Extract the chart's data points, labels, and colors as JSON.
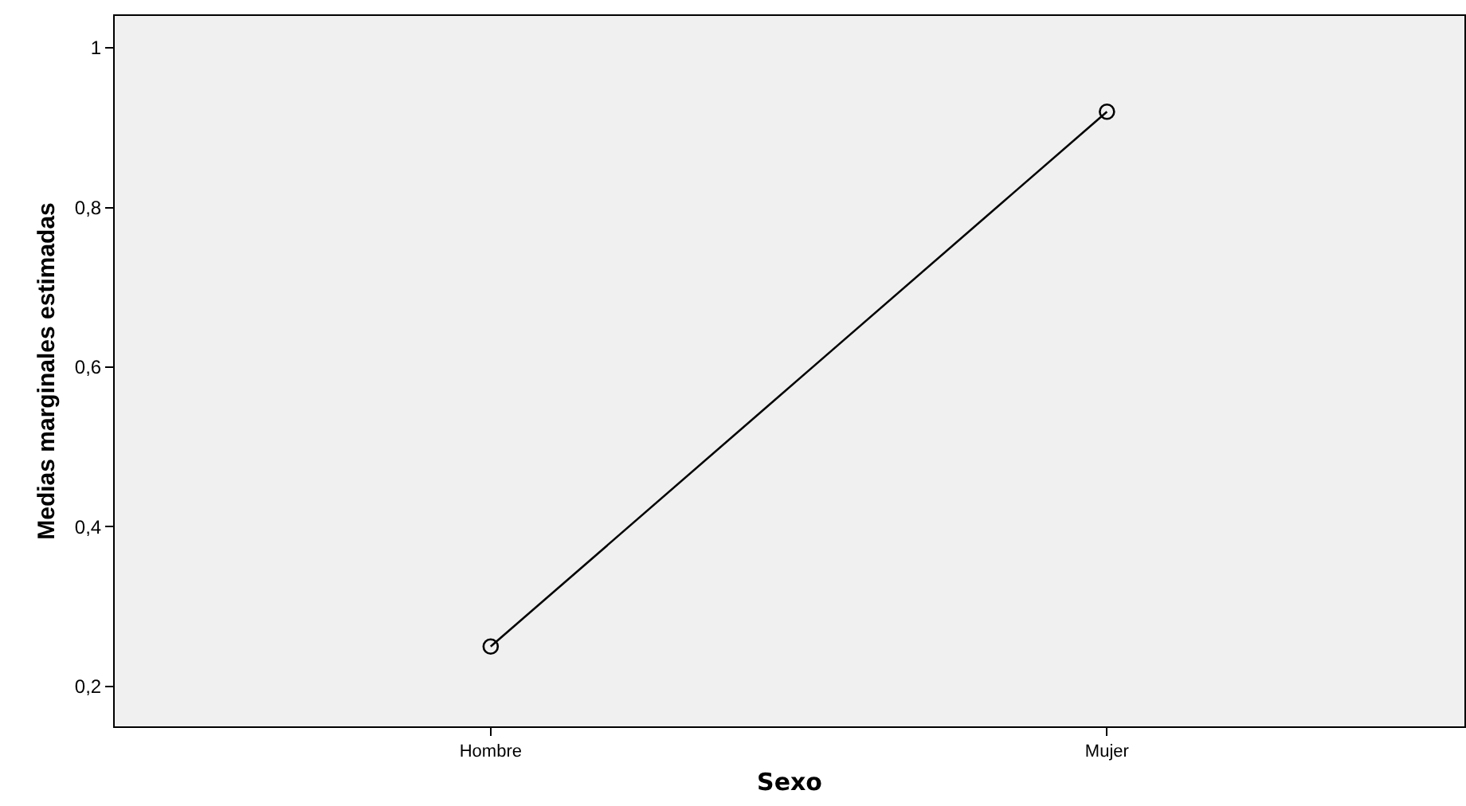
{
  "chart_data": {
    "type": "line",
    "xlabel": "Sexo",
    "ylabel": "Medias marginales estimadas",
    "categories": [
      "Hombre",
      "Mujer"
    ],
    "series": [
      {
        "color": "#000000",
        "values": [
          0.25,
          0.92
        ]
      }
    ],
    "ylim": [
      0.15,
      1.04
    ],
    "yticks": [
      {
        "value": 0.2,
        "label": "0,2"
      },
      {
        "value": 0.4,
        "label": "0,4"
      },
      {
        "value": 0.6,
        "label": "0,6"
      },
      {
        "value": 0.8,
        "label": "0,8"
      },
      {
        "value": 1,
        "label": "1"
      }
    ],
    "grid": false,
    "marker": "circle",
    "line_style": "solid"
  }
}
